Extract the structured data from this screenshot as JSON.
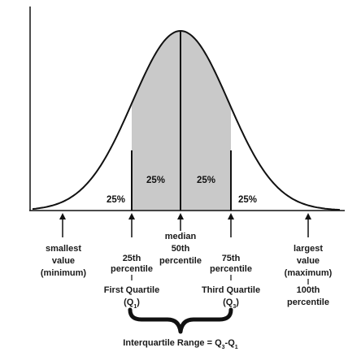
{
  "regions": {
    "left_tail": "25%",
    "q2_left": "25%",
    "q3_right": "25%",
    "right_tail": "25%"
  },
  "minimum": {
    "line1": "smallest",
    "line2": "value",
    "line3": "(minimum)"
  },
  "q1": {
    "line1": "25th",
    "line2": "percentile",
    "name": "First Quartile",
    "symbol": "(Q",
    "sub": "1",
    "close": ")"
  },
  "median": {
    "line1": "median",
    "line2": "50th",
    "line3": "percentile"
  },
  "q3": {
    "line1": "75th",
    "line2": "percentile",
    "name": "Third Quartile",
    "symbol": "(Q",
    "sub": "3",
    "close": ")"
  },
  "maximum": {
    "line1": "largest",
    "line2": "value",
    "line3": "(maximum)",
    "line4": "100th",
    "line5": "percentile"
  },
  "iqr": {
    "label": "Interquartile Range = Q",
    "sub1": "3",
    "dash": "-Q",
    "sub2": "1"
  },
  "colors": {
    "shade": "#c9c9c9",
    "ink": "#111111"
  }
}
